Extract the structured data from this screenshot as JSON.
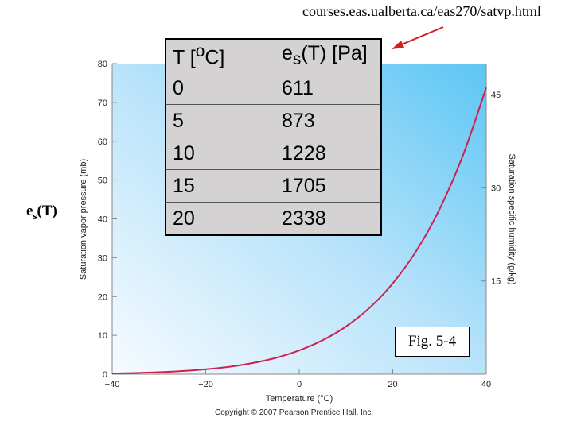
{
  "source_url": "courses.eas.ualberta.ca/eas270/satvp.html",
  "side_label": {
    "main": "e",
    "sub": "s",
    "rest": "(T)"
  },
  "table": {
    "headers": [
      {
        "main": "T  [",
        "sup": "o",
        "rest": "C]"
      },
      {
        "main": "e",
        "sub": "s",
        "rest": "(T) [Pa]"
      }
    ],
    "rows": [
      [
        "0",
        "611"
      ],
      [
        "5",
        "873"
      ],
      [
        "10",
        "1228"
      ],
      [
        "15",
        "1705"
      ],
      [
        "20",
        "2338"
      ]
    ]
  },
  "figure_label": "Fig. 5-4",
  "copyright": "Copyright © 2007 Pearson Prentice Hall, Inc.",
  "colors": {
    "curve": "#cc2250",
    "arrow": "#d42020",
    "background_light": "#f2f9fe",
    "background_dark": "#5cc6f4",
    "table_bg": "#d4d2d2"
  },
  "chart_data": {
    "type": "line",
    "xlabel": "Temperature (°C)",
    "ylabel": "Saturation vapor pressure (mb)",
    "y2label": "Saturation specific humidity (g/kg)",
    "xlim": [
      -40,
      40
    ],
    "ylim": [
      0,
      80
    ],
    "xticks": [
      -40,
      -20,
      0,
      20,
      40
    ],
    "yticks": [
      0,
      10,
      20,
      30,
      40,
      50,
      60,
      70,
      80
    ],
    "y2ticks": [
      15,
      30,
      45
    ],
    "grid": false,
    "series": [
      {
        "x": [
          -40,
          -35,
          -30,
          -25,
          -20,
          -15,
          -10,
          -5,
          0,
          5,
          10,
          15,
          20,
          25,
          30,
          35,
          40
        ],
        "y": [
          0.19,
          0.31,
          0.51,
          0.81,
          1.26,
          1.91,
          2.86,
          4.2,
          6.11,
          8.73,
          12.28,
          17.05,
          23.38,
          31.69,
          42.47,
          56.28,
          73.8
        ]
      }
    ]
  }
}
